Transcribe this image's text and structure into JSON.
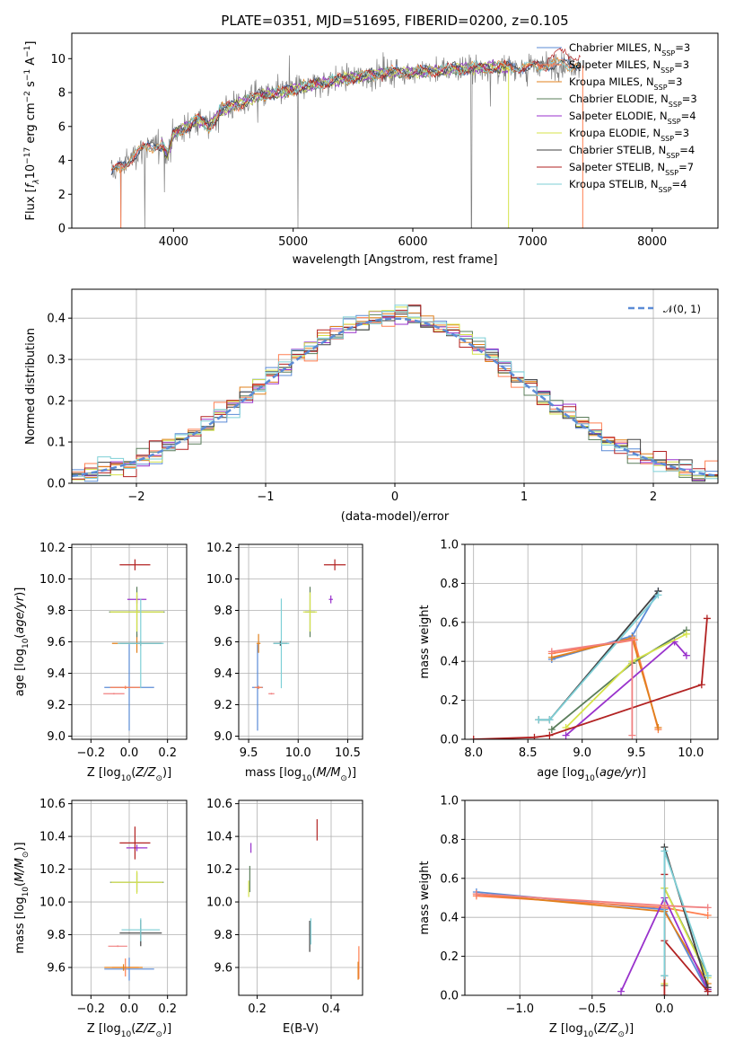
{
  "figure": {
    "title": "PLATE=0351, MJD=51695, FIBERID=0200, z=0.105"
  },
  "colors": {
    "chabrier_miles": "#5b8bd6",
    "salpeter_miles": "#ff7f50",
    "kroupa_miles": "#e0801c",
    "chabrier_elodie": "#5a7d5a",
    "salpeter_elodie": "#9932cc",
    "kroupa_elodie": "#d6e34a",
    "chabrier_stelib": "#404040",
    "salpeter_stelib": "#b22222",
    "kroupa_stelib": "#7ecfd6",
    "data_spectrum": "#808080",
    "normal_curve": "#5b8bd6"
  },
  "chart_data": [
    {
      "id": "spectrum",
      "type": "line",
      "xlabel": "wavelength [Angstrom, rest frame]",
      "ylabel": "Flux [f_λ10^-17 erg cm^-2 s^-1 A^-1]",
      "xlim": [
        3150,
        8550
      ],
      "ylim": [
        0,
        11.5
      ],
      "xticks": [
        4000,
        5000,
        6000,
        7000,
        8000
      ],
      "yticks": [
        0,
        2,
        4,
        6,
        8,
        10
      ],
      "grid": false,
      "legend_position": "right",
      "legend": [
        {
          "label": "Chabrier MILES, N_SSP=3",
          "color_key": "chabrier_miles"
        },
        {
          "label": "Salpeter MILES, N_SSP=3",
          "color_key": "salpeter_miles"
        },
        {
          "label": "Kroupa MILES, N_SSP=3",
          "color_key": "kroupa_miles"
        },
        {
          "label": "Chabrier ELODIE, N_SSP=3",
          "color_key": "chabrier_elodie"
        },
        {
          "label": "Salpeter ELODIE, N_SSP=4",
          "color_key": "salpeter_elodie"
        },
        {
          "label": "Kroupa ELODIE, N_SSP=3",
          "color_key": "kroupa_elodie"
        },
        {
          "label": "Chabrier STELIB, N_SSP=4",
          "color_key": "chabrier_stelib"
        },
        {
          "label": "Salpeter STELIB, N_SSP=7",
          "color_key": "salpeter_stelib"
        },
        {
          "label": "Kroupa STELIB, N_SSP=4",
          "color_key": "kroupa_stelib"
        }
      ],
      "continuum_knots": {
        "x": [
          3480,
          3600,
          3700,
          3800,
          3900,
          3950,
          4000,
          4100,
          4200,
          4300,
          4400,
          4500,
          4700,
          4900,
          5000,
          5200,
          5400,
          5600,
          5800,
          6000,
          6200,
          6400,
          6600,
          6800,
          7000,
          7200,
          7400
        ],
        "y": [
          3.3,
          3.8,
          4.5,
          4.8,
          5.0,
          4.3,
          5.6,
          5.9,
          6.4,
          6.0,
          7.0,
          7.2,
          7.8,
          8.0,
          8.2,
          8.5,
          8.8,
          9.0,
          9.2,
          9.2,
          9.3,
          9.4,
          9.5,
          9.5,
          9.5,
          9.7,
          9.6
        ]
      }
    },
    {
      "id": "residual_hist",
      "type": "line",
      "xlabel": "(data-model)/error",
      "ylabel": "Normed distribution",
      "xlim": [
        -2.5,
        2.5
      ],
      "ylim": [
        0,
        0.47
      ],
      "xticks": [
        -2,
        -1,
        0,
        1,
        2
      ],
      "yticks": [
        0.0,
        0.1,
        0.2,
        0.3,
        0.4
      ],
      "grid": true,
      "legend_position": "top-right",
      "legend": [
        {
          "label": "𝒩(0, 1)",
          "color_key": "normal_curve"
        }
      ],
      "bin_width": 0.1
    },
    {
      "id": "age_vs_Z",
      "type": "scatter",
      "xlabel": "Z [log10(Z/Z⊙)]",
      "ylabel": "age  [log10(age/yr)]",
      "xlim": [
        -0.3,
        0.3
      ],
      "ylim": [
        8.98,
        10.22
      ],
      "xticks": [
        -0.2,
        0.0,
        0.2
      ],
      "yticks": [
        9.0,
        9.2,
        9.4,
        9.6,
        9.8,
        10.0,
        10.2
      ],
      "grid": true,
      "points": [
        {
          "series": "chabrier_miles",
          "x": 0.0,
          "xerr": 0.26,
          "y": 9.31,
          "yerr": 0.55
        },
        {
          "series": "salpeter_miles",
          "x": -0.02,
          "xerr": 0.16,
          "y": 9.31,
          "yerr": 0.02
        },
        {
          "series": "kroupa_miles",
          "x": 0.04,
          "xerr": 0.26,
          "y": 9.59,
          "yerr": 0.12
        },
        {
          "series": "chabrier_elodie",
          "x": 0.04,
          "xerr": 0.29,
          "y": 9.79,
          "yerr": 0.32
        },
        {
          "series": "salpeter_elodie",
          "x": 0.04,
          "xerr": 0.1,
          "y": 9.87,
          "yerr": 0.05
        },
        {
          "series": "kroupa_elodie",
          "x": 0.04,
          "xerr": 0.28,
          "y": 9.79,
          "yerr": 0.25
        },
        {
          "series": "chabrier_stelib",
          "x": 0.06,
          "xerr": 0.22,
          "y": 9.59,
          "yerr": 0.03
        },
        {
          "series": "salpeter_stelib",
          "x": 0.03,
          "xerr": 0.16,
          "y": 10.09,
          "yerr": 0.07
        },
        {
          "series": "kroupa_stelib",
          "x": 0.06,
          "xerr": 0.24,
          "y": 9.59,
          "yerr": 0.57
        },
        {
          "series": "salpeter_miles_pink",
          "x": -0.08,
          "xerr": 0.11,
          "y": 9.27,
          "yerr": 0.01
        }
      ]
    },
    {
      "id": "age_vs_mass",
      "type": "scatter",
      "xlabel": "mass [log10(M/M⊙)]",
      "ylabel": "",
      "xlim": [
        9.4,
        10.65
      ],
      "ylim": [
        8.98,
        10.22
      ],
      "xticks": [
        9.5,
        10.0,
        10.5
      ],
      "yticks": [
        9.0,
        9.2,
        9.4,
        9.6,
        9.8,
        10.0,
        10.2
      ],
      "grid": true,
      "points": [
        {
          "series": "chabrier_miles",
          "x": 9.59,
          "xerr": 0.11,
          "y": 9.31,
          "yerr": 0.55
        },
        {
          "series": "salpeter_miles",
          "x": 9.6,
          "xerr": 0.08,
          "y": 9.31,
          "yerr": 0.02
        },
        {
          "series": "kroupa_miles",
          "x": 9.6,
          "xerr": 0.04,
          "y": 9.59,
          "yerr": 0.12
        },
        {
          "series": "chabrier_elodie",
          "x": 10.12,
          "xerr": 0.1,
          "y": 9.79,
          "yerr": 0.32
        },
        {
          "series": "salpeter_elodie",
          "x": 10.33,
          "xerr": 0.04,
          "y": 9.87,
          "yerr": 0.05
        },
        {
          "series": "kroupa_elodie",
          "x": 10.12,
          "xerr": 0.14,
          "y": 9.79,
          "yerr": 0.25
        },
        {
          "series": "chabrier_stelib",
          "x": 9.82,
          "xerr": 0.14,
          "y": 9.59,
          "yerr": 0.03
        },
        {
          "series": "salpeter_stelib",
          "x": 10.37,
          "xerr": 0.22,
          "y": 10.09,
          "yerr": 0.07
        },
        {
          "series": "kroupa_stelib",
          "x": 9.83,
          "xerr": 0.16,
          "y": 9.59,
          "yerr": 0.57
        },
        {
          "series": "salpeter_miles_pink",
          "x": 9.73,
          "xerr": 0.06,
          "y": 9.27,
          "yerr": 0.01
        }
      ]
    },
    {
      "id": "weight_vs_age",
      "type": "line",
      "xlabel": "age  [log10(age/yr)]",
      "ylabel": "mass weight",
      "xlim": [
        7.92,
        10.25
      ],
      "ylim": [
        0.0,
        1.0
      ],
      "xticks": [
        8.0,
        8.5,
        9.0,
        9.5,
        10.0
      ],
      "yticks": [
        0.0,
        0.2,
        0.4,
        0.6,
        0.8,
        1.0
      ],
      "grid": true,
      "series": [
        {
          "key": "chabrier_miles",
          "x": [
            8.72,
            9.46,
            9.7
          ],
          "y": [
            0.41,
            0.53,
            0.76
          ]
        },
        {
          "key": "salpeter_miles",
          "x": [
            8.72,
            9.48,
            9.7
          ],
          "y": [
            0.44,
            0.51,
            0.05
          ]
        },
        {
          "key": "kroupa_miles",
          "x": [
            8.72,
            9.46,
            9.7
          ],
          "y": [
            0.42,
            0.52,
            0.06
          ]
        },
        {
          "key": "chabrier_elodie",
          "x": [
            8.72,
            9.46,
            9.96
          ],
          "y": [
            0.05,
            0.39,
            0.56
          ]
        },
        {
          "key": "salpeter_elodie",
          "x": [
            8.85,
            9.85,
            9.96
          ],
          "y": [
            0.02,
            0.5,
            0.43
          ]
        },
        {
          "key": "kroupa_elodie",
          "x": [
            8.85,
            9.46,
            9.96
          ],
          "y": [
            0.06,
            0.4,
            0.54
          ]
        },
        {
          "key": "chabrier_stelib",
          "x": [
            8.6,
            8.7,
            9.7
          ],
          "y": [
            0.1,
            0.1,
            0.76
          ]
        },
        {
          "key": "salpeter_stelib",
          "x": [
            8.0,
            8.56,
            8.7,
            10.1,
            10.15
          ],
          "y": [
            0.0,
            0.01,
            0.02,
            0.28,
            0.62
          ]
        },
        {
          "key": "kroupa_stelib",
          "x": [
            8.6,
            8.7,
            9.7
          ],
          "y": [
            0.1,
            0.1,
            0.74
          ]
        },
        {
          "key": "salpeter_miles_pink",
          "x": [
            8.72,
            9.46,
            9.46
          ],
          "y": [
            0.45,
            0.51,
            0.02
          ]
        }
      ]
    },
    {
      "id": "mass_vs_Z",
      "type": "scatter",
      "xlabel": "Z [log10(Z/Z⊙)]",
      "ylabel": "mass [log10(M/M⊙)]",
      "xlim": [
        -0.3,
        0.3
      ],
      "ylim": [
        9.43,
        10.62
      ],
      "xticks": [
        -0.2,
        0.0,
        0.2
      ],
      "yticks": [
        9.6,
        9.8,
        10.0,
        10.2,
        10.4,
        10.6
      ],
      "grid": true,
      "points": [
        {
          "series": "chabrier_miles",
          "x": 0.0,
          "xerr": 0.26,
          "y": 9.59,
          "yerr": 0.14
        },
        {
          "series": "salpeter_miles",
          "x": -0.02,
          "xerr": 0.14,
          "y": 9.6,
          "yerr": 0.11
        },
        {
          "series": "kroupa_miles",
          "x": -0.03,
          "xerr": 0.2,
          "y": 9.6,
          "yerr": 0.04
        },
        {
          "series": "chabrier_elodie",
          "x": 0.04,
          "xerr": 0.28,
          "y": 10.12,
          "yerr": 0.12
        },
        {
          "series": "salpeter_elodie",
          "x": 0.04,
          "xerr": 0.11,
          "y": 10.33,
          "yerr": 0.04
        },
        {
          "series": "kroupa_elodie",
          "x": 0.04,
          "xerr": 0.27,
          "y": 10.12,
          "yerr": 0.14
        },
        {
          "series": "chabrier_stelib",
          "x": 0.06,
          "xerr": 0.22,
          "y": 9.81,
          "yerr": 0.16
        },
        {
          "series": "salpeter_stelib",
          "x": 0.03,
          "xerr": 0.16,
          "y": 10.36,
          "yerr": 0.2
        },
        {
          "series": "kroupa_stelib",
          "x": 0.06,
          "xerr": 0.2,
          "y": 9.83,
          "yerr": 0.14
        },
        {
          "series": "salpeter_miles_pink",
          "x": -0.06,
          "xerr": 0.1,
          "y": 9.73,
          "yerr": 0.01
        }
      ]
    },
    {
      "id": "mass_vs_ebv",
      "type": "scatter",
      "xlabel": "E(B-V)",
      "ylabel": "",
      "xlim": [
        0.15,
        0.485
      ],
      "ylim": [
        9.43,
        10.62
      ],
      "xticks": [
        0.2,
        0.4
      ],
      "yticks": [
        9.6,
        9.8,
        10.0,
        10.2,
        10.4,
        10.6
      ],
      "grid": true,
      "points": [
        {
          "series": "chabrier_elodie",
          "x": 0.18,
          "y": 10.14,
          "yerr": 0.16
        },
        {
          "series": "salpeter_elodie",
          "x": 0.183,
          "y": 10.33,
          "yerr": 0.06
        },
        {
          "series": "kroupa_elodie",
          "x": 0.177,
          "y": 10.08,
          "yerr": 0.1
        },
        {
          "series": "salpeter_stelib",
          "x": 0.362,
          "y": 10.44,
          "yerr": 0.13
        },
        {
          "series": "chabrier_stelib",
          "x": 0.342,
          "y": 9.79,
          "yerr": 0.19
        },
        {
          "series": "kroupa_stelib",
          "x": 0.345,
          "y": 9.82,
          "yerr": 0.16
        },
        {
          "series": "salpeter_miles",
          "x": 0.475,
          "y": 9.63,
          "yerr": 0.2
        },
        {
          "series": "kroupa_miles",
          "x": 0.473,
          "y": 9.58,
          "yerr": 0.11
        }
      ]
    },
    {
      "id": "weight_vs_Z",
      "type": "line",
      "xlabel": "Z [log10(Z/Z⊙)]",
      "ylabel": "mass weight",
      "xlim": [
        -1.38,
        0.37
      ],
      "ylim": [
        0.0,
        1.0
      ],
      "xticks": [
        -1.0,
        -0.5,
        0.0
      ],
      "yticks": [
        0.0,
        0.2,
        0.4,
        0.6,
        0.8,
        1.0
      ],
      "grid": true,
      "series": [
        {
          "key": "chabrier_miles",
          "x": [
            -1.3,
            0.0,
            0.3
          ],
          "y": [
            0.53,
            0.44,
            0.02
          ]
        },
        {
          "key": "salpeter_miles",
          "x": [
            -1.3,
            0.0,
            0.3
          ],
          "y": [
            0.51,
            0.45,
            0.41
          ]
        },
        {
          "key": "kroupa_miles",
          "x": [
            -1.3,
            0.0,
            0.3
          ],
          "y": [
            0.52,
            0.43,
            0.06
          ]
        },
        {
          "key": "chabrier_elodie",
          "x": [
            0.0,
            0.0,
            0.3
          ],
          "y": [
            0.05,
            0.55,
            0.1
          ]
        },
        {
          "key": "salpeter_elodie",
          "x": [
            -0.3,
            0.0,
            0.3
          ],
          "y": [
            0.02,
            0.5,
            0.03
          ]
        },
        {
          "key": "kroupa_elodie",
          "x": [
            0.0,
            0.0,
            0.3
          ],
          "y": [
            0.06,
            0.55,
            0.09
          ]
        },
        {
          "key": "chabrier_stelib",
          "x": [
            0.0,
            0.0,
            0.3
          ],
          "y": [
            0.1,
            0.76,
            0.04
          ]
        },
        {
          "key": "salpeter_stelib",
          "x": [
            0.0,
            0.0,
            0.0,
            0.3
          ],
          "y": [
            0.0,
            0.62,
            0.28,
            0.02
          ]
        },
        {
          "key": "kroupa_stelib",
          "x": [
            0.0,
            0.0,
            0.3
          ],
          "y": [
            0.1,
            0.74,
            0.1
          ]
        },
        {
          "key": "salpeter_miles_pink",
          "x": [
            -1.3,
            0.0,
            0.3
          ],
          "y": [
            0.52,
            0.46,
            0.45
          ]
        }
      ]
    }
  ]
}
